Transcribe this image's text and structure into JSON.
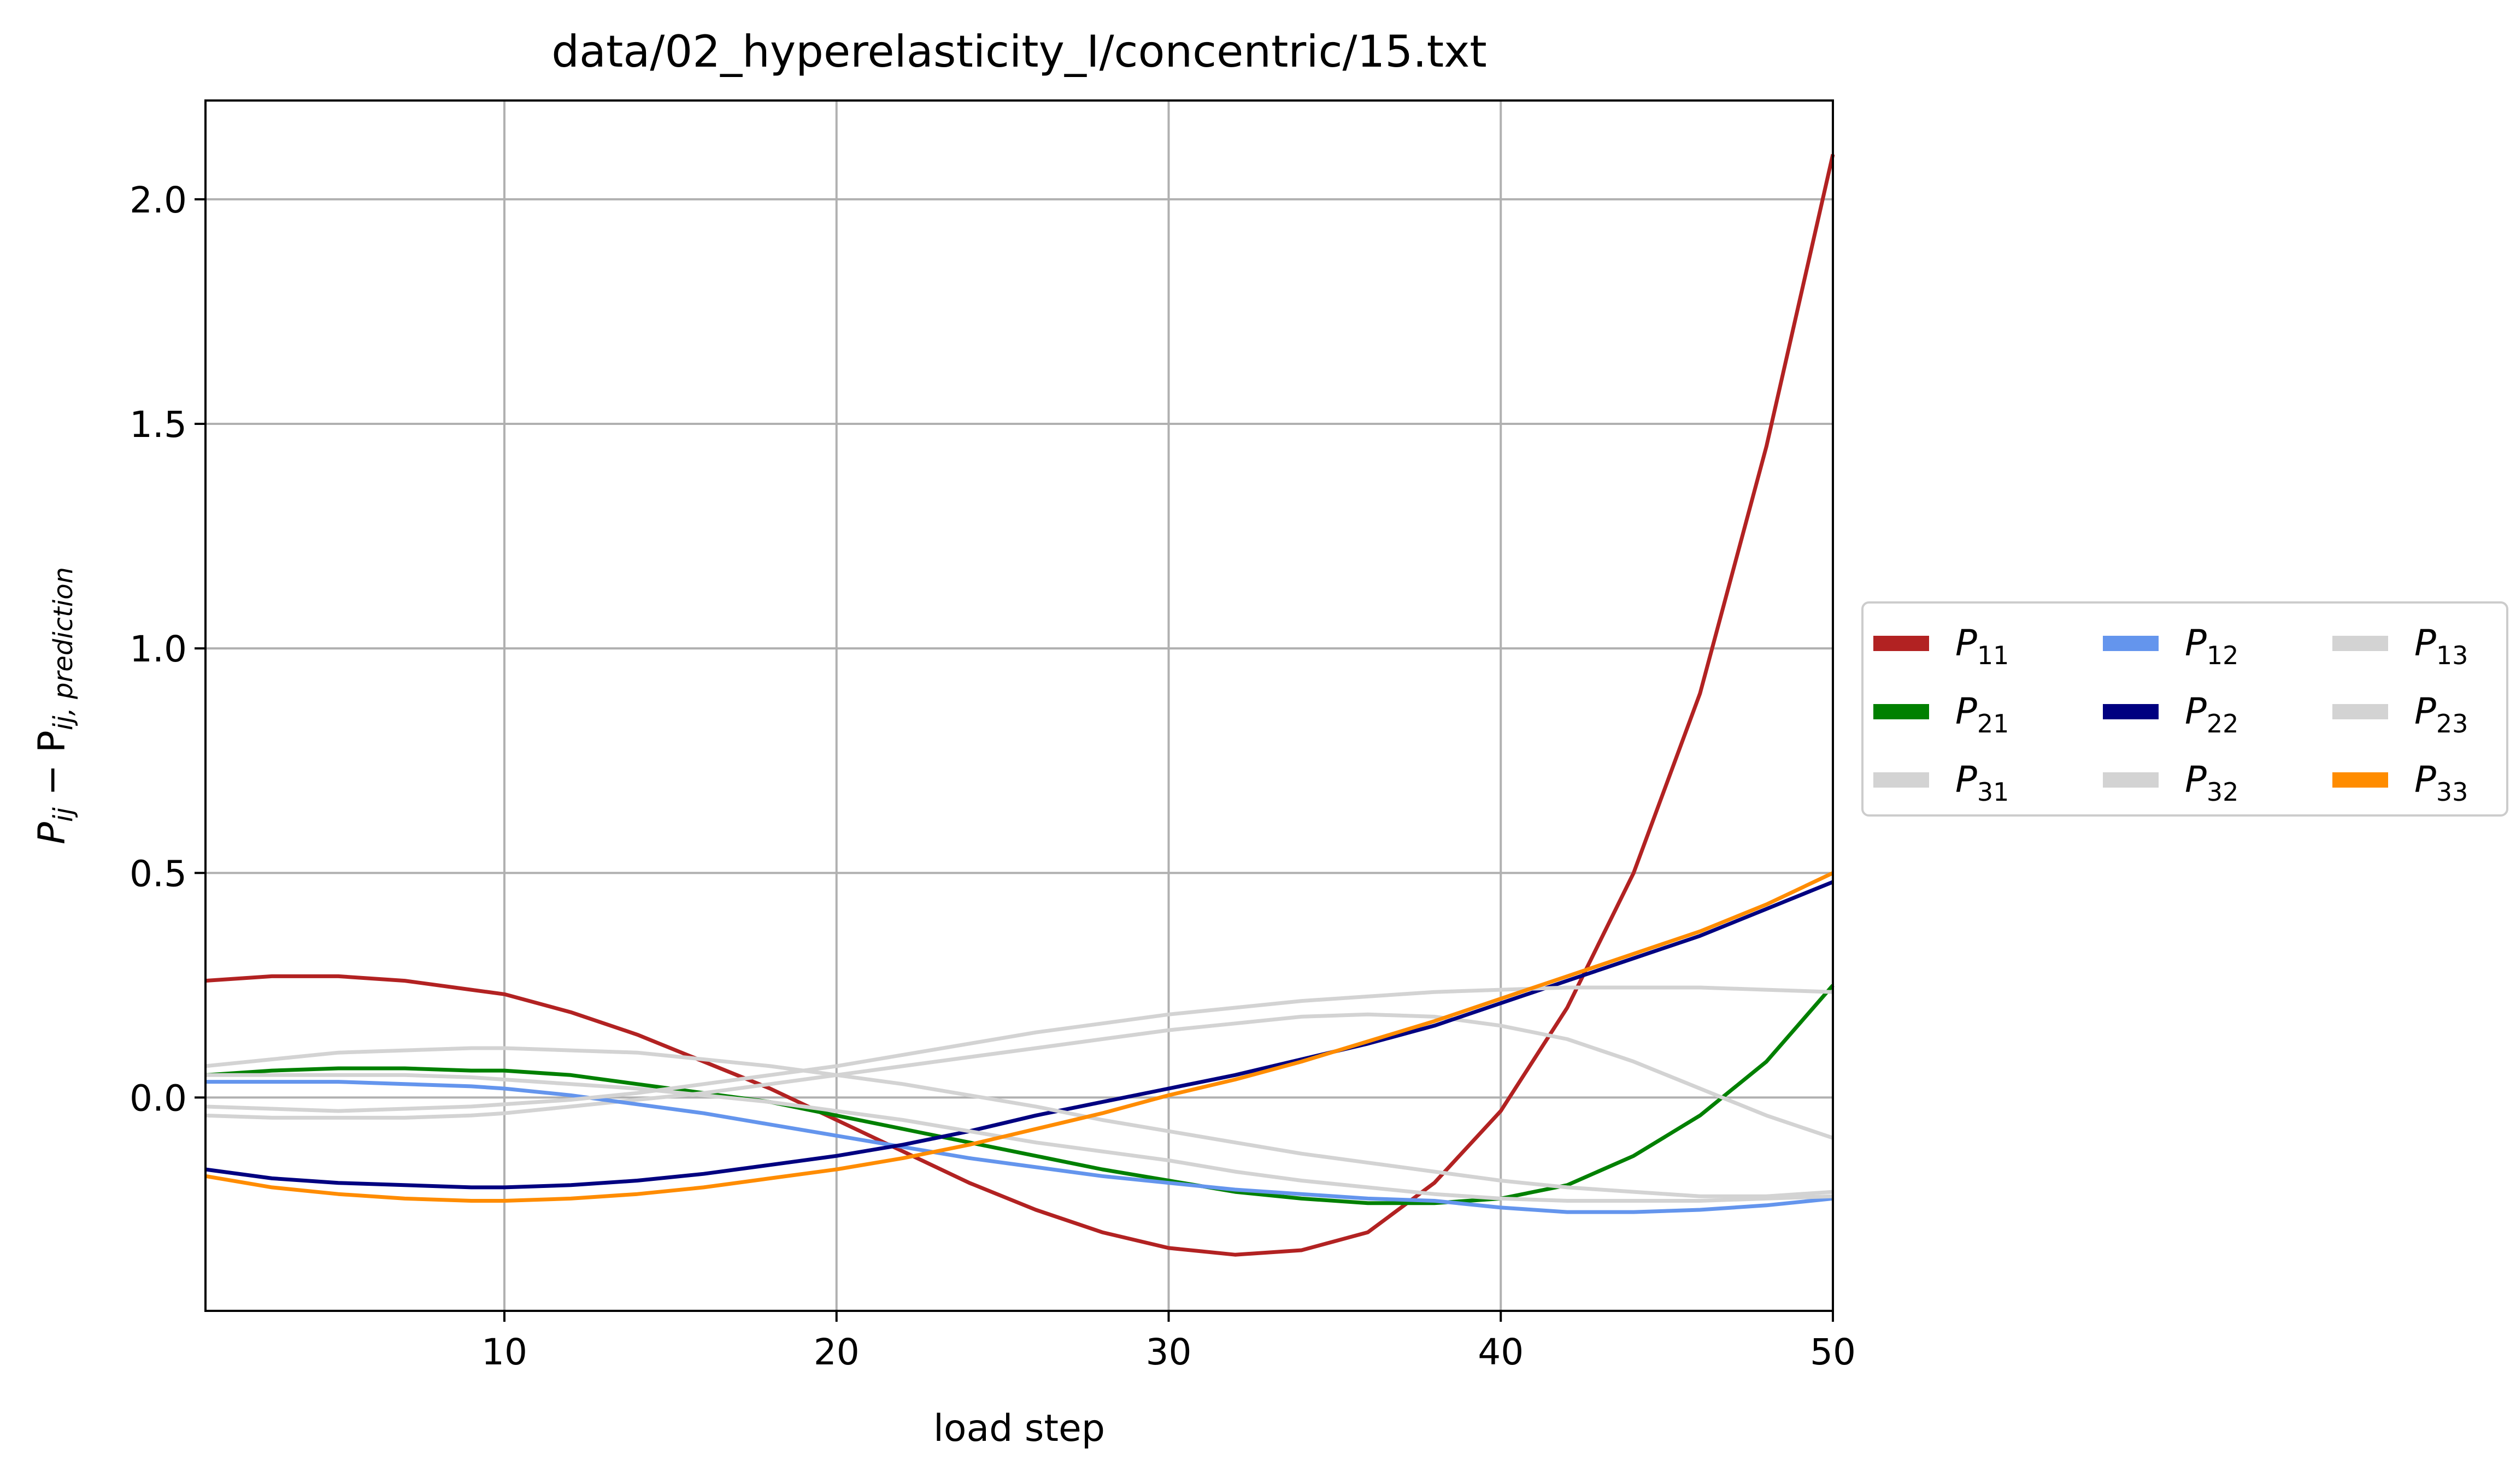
{
  "chart_data": {
    "type": "line",
    "title": "data/02_hyperelasticity_I/concentric/15.txt",
    "xlabel": "load step",
    "ylabel": {
      "base": "P",
      "sub1": "ij",
      "mid": " − P",
      "sub2": "ij, prediction"
    },
    "xlim": [
      1,
      50
    ],
    "ylim": [
      -0.475,
      2.22
    ],
    "xticks": [
      10,
      20,
      30,
      40,
      50
    ],
    "yticks": [
      0.0,
      0.5,
      1.0,
      1.5,
      2.0
    ],
    "xtick_labels": [
      "10",
      "20",
      "30",
      "40",
      "50"
    ],
    "ytick_labels": [
      "0.0",
      "0.5",
      "1.0",
      "1.5",
      "2.0"
    ],
    "grid": true,
    "legend_position": "outside-right",
    "legend_columns": 3,
    "x": [
      1,
      3,
      5,
      7,
      9,
      10,
      12,
      14,
      16,
      18,
      20,
      22,
      24,
      26,
      28,
      30,
      32,
      34,
      36,
      38,
      40,
      42,
      44,
      46,
      48,
      50
    ],
    "series": [
      {
        "name": "P11",
        "base": "P",
        "sub": "11",
        "color": "#b22222",
        "values": [
          0.26,
          0.27,
          0.27,
          0.26,
          0.24,
          0.23,
          0.19,
          0.14,
          0.08,
          0.02,
          -0.05,
          -0.12,
          -0.19,
          -0.25,
          -0.3,
          -0.335,
          -0.35,
          -0.34,
          -0.3,
          -0.19,
          -0.03,
          0.2,
          0.5,
          0.9,
          1.45,
          2.1
        ]
      },
      {
        "name": "P21",
        "base": "P",
        "sub": "21",
        "color": "#008000",
        "values": [
          0.05,
          0.06,
          0.065,
          0.065,
          0.06,
          0.06,
          0.05,
          0.03,
          0.01,
          -0.01,
          -0.04,
          -0.07,
          -0.1,
          -0.13,
          -0.16,
          -0.185,
          -0.21,
          -0.225,
          -0.235,
          -0.235,
          -0.225,
          -0.195,
          -0.13,
          -0.04,
          0.08,
          0.25
        ]
      },
      {
        "name": "P31",
        "base": "P",
        "sub": "31",
        "color": "#d3d3d3",
        "values": [
          -0.04,
          -0.045,
          -0.045,
          -0.045,
          -0.04,
          -0.035,
          -0.02,
          -0.005,
          0.01,
          0.03,
          0.05,
          0.07,
          0.09,
          0.11,
          0.13,
          0.15,
          0.165,
          0.18,
          0.185,
          0.18,
          0.16,
          0.13,
          0.08,
          0.02,
          -0.04,
          -0.09
        ]
      },
      {
        "name": "P12",
        "base": "P",
        "sub": "12",
        "color": "#6495ed",
        "values": [
          0.035,
          0.035,
          0.035,
          0.03,
          0.025,
          0.02,
          0.005,
          -0.015,
          -0.035,
          -0.06,
          -0.085,
          -0.11,
          -0.135,
          -0.155,
          -0.175,
          -0.19,
          -0.205,
          -0.215,
          -0.225,
          -0.23,
          -0.245,
          -0.255,
          -0.255,
          -0.25,
          -0.24,
          -0.225
        ]
      },
      {
        "name": "P22",
        "base": "P",
        "sub": "22",
        "color": "#000080",
        "values": [
          -0.16,
          -0.18,
          -0.19,
          -0.195,
          -0.2,
          -0.2,
          -0.195,
          -0.185,
          -0.17,
          -0.15,
          -0.13,
          -0.105,
          -0.075,
          -0.04,
          -0.01,
          0.02,
          0.05,
          0.085,
          0.12,
          0.16,
          0.21,
          0.26,
          0.31,
          0.36,
          0.42,
          0.48
        ]
      },
      {
        "name": "P32",
        "base": "P",
        "sub": "32",
        "color": "#d3d3d3",
        "values": [
          0.07,
          0.085,
          0.1,
          0.105,
          0.11,
          0.11,
          0.105,
          0.1,
          0.085,
          0.07,
          0.05,
          0.03,
          0.005,
          -0.02,
          -0.05,
          -0.075,
          -0.1,
          -0.125,
          -0.145,
          -0.165,
          -0.185,
          -0.2,
          -0.21,
          -0.22,
          -0.22,
          -0.21
        ]
      },
      {
        "name": "P13",
        "base": "P",
        "sub": "13",
        "color": "#d3d3d3",
        "values": [
          -0.02,
          -0.025,
          -0.03,
          -0.025,
          -0.02,
          -0.015,
          -0.005,
          0.01,
          0.03,
          0.05,
          0.07,
          0.095,
          0.12,
          0.145,
          0.165,
          0.185,
          0.2,
          0.215,
          0.225,
          0.235,
          0.24,
          0.245,
          0.245,
          0.245,
          0.24,
          0.235
        ]
      },
      {
        "name": "P23",
        "base": "P",
        "sub": "23",
        "color": "#d3d3d3",
        "values": [
          0.05,
          0.05,
          0.05,
          0.05,
          0.045,
          0.04,
          0.03,
          0.02,
          0.005,
          -0.01,
          -0.03,
          -0.05,
          -0.075,
          -0.1,
          -0.12,
          -0.14,
          -0.165,
          -0.185,
          -0.2,
          -0.215,
          -0.225,
          -0.23,
          -0.23,
          -0.23,
          -0.225,
          -0.22
        ]
      },
      {
        "name": "P33",
        "base": "P",
        "sub": "33",
        "color": "#ff8c00",
        "values": [
          -0.175,
          -0.2,
          -0.215,
          -0.225,
          -0.23,
          -0.23,
          -0.225,
          -0.215,
          -0.2,
          -0.18,
          -0.16,
          -0.135,
          -0.105,
          -0.07,
          -0.035,
          0.005,
          0.04,
          0.08,
          0.125,
          0.17,
          0.22,
          0.27,
          0.32,
          0.37,
          0.43,
          0.5
        ]
      }
    ],
    "legend_order": [
      "P11",
      "P12",
      "P13",
      "P21",
      "P22",
      "P23",
      "P31",
      "P32",
      "P33"
    ]
  }
}
